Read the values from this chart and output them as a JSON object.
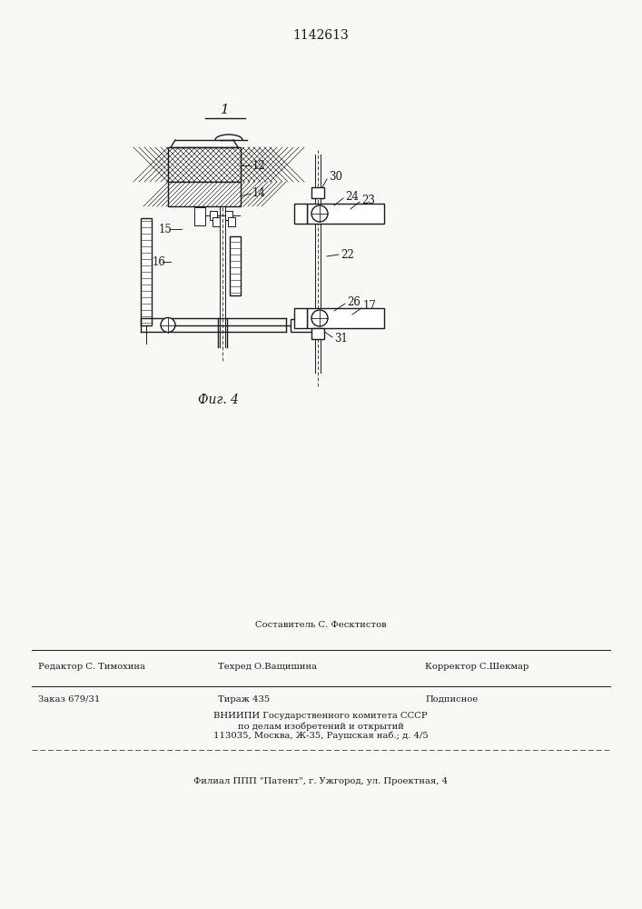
{
  "patent_number": "1142613",
  "fig_label": "Фиг. 4",
  "bg_color": "#f8f8f5",
  "line_color": "#1a1a1a",
  "footer": {
    "line1_center_top": "Составитель С. Фесктистов",
    "line1_left": "Редактор С. Тимохина",
    "line1_center": "Техред О.Ващишина",
    "line1_right": "Корректор С.Шекмар",
    "line2_left": "Заказ 679/31",
    "line2_center": "Тираж 435",
    "line2_right": "Подписное",
    "line3": "ВНИИПИ Государственного комитета СССР",
    "line4": "по делам изобретений и открытий",
    "line5": "113035, Москва, Ж-35, Раушская наб.; д. 4/5",
    "line6": "Филиал ППП \"Патент\", г. Ужгород, ул. Проектная, 4"
  }
}
